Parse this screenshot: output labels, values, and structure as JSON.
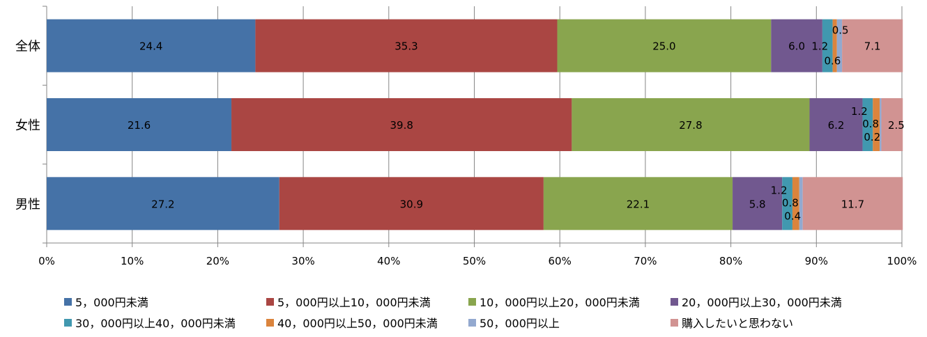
{
  "chart_data": {
    "type": "bar",
    "orientation": "horizontal",
    "stacked": "100%",
    "categories": [
      "全体",
      "女性",
      "男性"
    ],
    "series": [
      {
        "name": "5，000円未満",
        "color": "#4572a7",
        "values": [
          24.4,
          21.6,
          27.2
        ],
        "labels": [
          "24.4",
          "21.6",
          "27.2"
        ]
      },
      {
        "name": "5，000円以上10，000円未満",
        "color": "#aa4643",
        "values": [
          35.3,
          39.8,
          30.9
        ],
        "labels": [
          "35.3",
          "39.8",
          "30.9"
        ]
      },
      {
        "name": "10，000円以上20，000円未満",
        "color": "#89a54e",
        "values": [
          25.0,
          27.8,
          22.1
        ],
        "labels": [
          "25.0",
          "27.8",
          "22.1"
        ]
      },
      {
        "name": "20，000円以上30，000円未満",
        "color": "#71588f",
        "values": [
          6.0,
          6.2,
          5.8
        ],
        "labels": [
          "6.0",
          "6.2",
          "5.8"
        ]
      },
      {
        "name": "30，000円以上40，000円未満",
        "color": "#4198af",
        "values": [
          1.2,
          1.2,
          1.2
        ],
        "labels": [
          "1.2",
          "1.2",
          "1.2"
        ]
      },
      {
        "name": "40，000円以上50，000円未満",
        "color": "#db843d",
        "values": [
          0.5,
          0.8,
          0.8
        ],
        "labels": [
          "0.5",
          "0.8",
          "0.8"
        ]
      },
      {
        "name": "50，000円以上",
        "color": "#93a9cf",
        "values": [
          0.6,
          0.2,
          0.4
        ],
        "labels": [
          "0.6",
          "0.2",
          "0.4"
        ]
      },
      {
        "name": "購入したいと思わない",
        "color": "#d19392",
        "values": [
          7.1,
          2.5,
          11.7
        ],
        "labels": [
          "7.1",
          "2.5",
          "11.7"
        ]
      }
    ],
    "x_ticks": [
      "0%",
      "10%",
      "20%",
      "30%",
      "40%",
      "50%",
      "60%",
      "70%",
      "80%",
      "90%",
      "100%"
    ],
    "xlim": [
      0,
      100
    ],
    "grid": "vertical",
    "legend": "bottom"
  }
}
